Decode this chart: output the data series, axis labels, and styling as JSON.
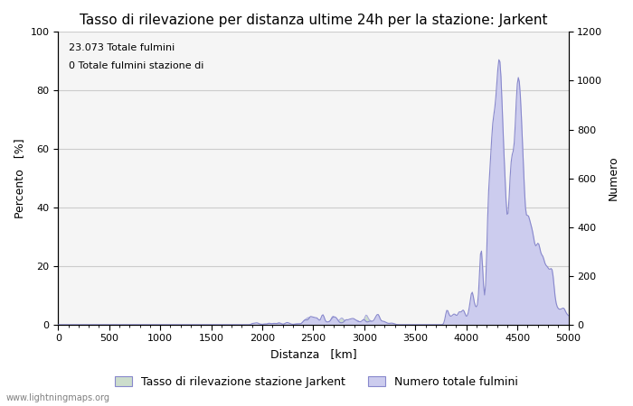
{
  "title": "Tasso di rilevazione per distanza ultime 24h per la stazione: Jarkent",
  "xlabel": "Distanza   [km]",
  "ylabel_left": "Percento   [%]",
  "ylabel_right": "Numero",
  "annotation_line1": "23.073 Totale fulmini",
  "annotation_line2": "0 Totale fulmini stazione di",
  "xlim": [
    0,
    5000
  ],
  "ylim_left": [
    0,
    100
  ],
  "ylim_right": [
    0,
    1200
  ],
  "xticks": [
    0,
    500,
    1000,
    1500,
    2000,
    2500,
    3000,
    3500,
    4000,
    4500,
    5000
  ],
  "yticks_left": [
    0,
    20,
    40,
    60,
    80,
    100
  ],
  "yticks_right": [
    0,
    200,
    400,
    600,
    800,
    1000,
    1200
  ],
  "grid_color": "#cccccc",
  "bg_color": "#ffffff",
  "plot_bg_color": "#f5f5f5",
  "line_color": "#8888cc",
  "fill_color_pct": "#ccddcc",
  "fill_color_num": "#ccccee",
  "legend_label_pct": "Tasso di rilevazione stazione Jarkent",
  "legend_label_num": "Numero totale fulmini",
  "watermark": "www.lightningmaps.org",
  "title_fontsize": 11,
  "axis_fontsize": 9,
  "tick_fontsize": 8,
  "annotation_fontsize": 8
}
